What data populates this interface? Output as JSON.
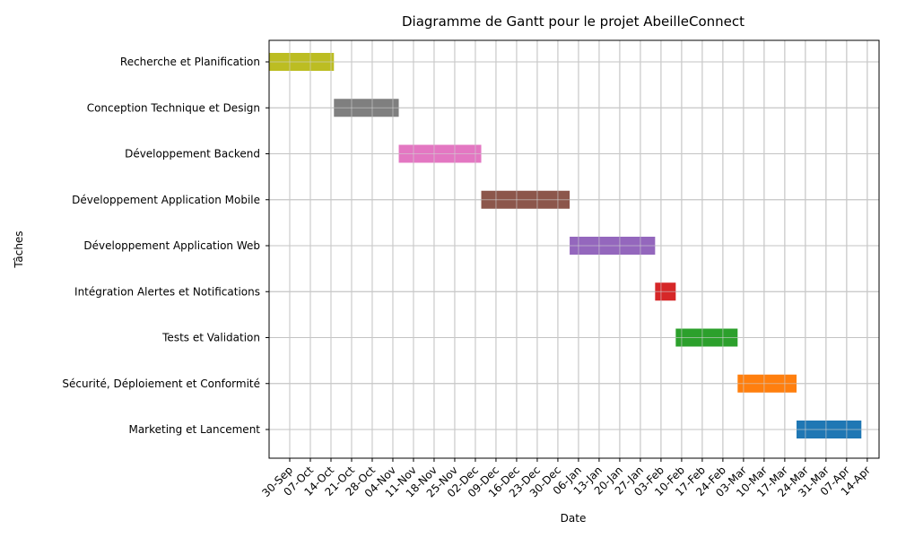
{
  "chart_data": {
    "type": "gantt",
    "title": "Diagramme de Gantt pour le projet AbeilleConnect",
    "xlabel": "Date",
    "ylabel": "Tâches",
    "grid": true,
    "x_range": [
      "2024-09-23",
      "2025-04-18"
    ],
    "x_ticks": [
      "30-Sep",
      "07-Oct",
      "14-Oct",
      "21-Oct",
      "28-Oct",
      "04-Nov",
      "11-Nov",
      "18-Nov",
      "25-Nov",
      "02-Dec",
      "09-Dec",
      "16-Dec",
      "23-Dec",
      "30-Dec",
      "06-Jan",
      "13-Jan",
      "20-Jan",
      "27-Jan",
      "03-Feb",
      "10-Feb",
      "17-Feb",
      "24-Feb",
      "03-Mar",
      "10-Mar",
      "17-Mar",
      "24-Mar",
      "31-Mar",
      "07-Apr",
      "14-Apr"
    ],
    "x_tick_dates": [
      "2024-09-30",
      "2024-10-07",
      "2024-10-14",
      "2024-10-21",
      "2024-10-28",
      "2024-11-04",
      "2024-11-11",
      "2024-11-18",
      "2024-11-25",
      "2024-12-02",
      "2024-12-09",
      "2024-12-16",
      "2024-12-23",
      "2024-12-30",
      "2025-01-06",
      "2025-01-13",
      "2025-01-20",
      "2025-01-27",
      "2025-02-03",
      "2025-02-10",
      "2025-02-17",
      "2025-02-24",
      "2025-03-03",
      "2025-03-10",
      "2025-03-17",
      "2025-03-24",
      "2025-03-31",
      "2025-04-07",
      "2025-04-14"
    ],
    "tasks": [
      {
        "name": "Recherche et Planification",
        "start": "2024-09-23",
        "end": "2024-10-14",
        "color": "#bcbd22"
      },
      {
        "name": "Conception Technique et Design",
        "start": "2024-10-15",
        "end": "2024-11-05",
        "color": "#7f7f7f"
      },
      {
        "name": "Développement Backend",
        "start": "2024-11-06",
        "end": "2024-12-03",
        "color": "#e377c2"
      },
      {
        "name": "Développement Application Mobile",
        "start": "2024-12-04",
        "end": "2025-01-02",
        "color": "#8c564b"
      },
      {
        "name": "Développement Application Web",
        "start": "2025-01-03",
        "end": "2025-01-31",
        "color": "#9467bd"
      },
      {
        "name": "Intégration Alertes et Notifications",
        "start": "2025-02-01",
        "end": "2025-02-07",
        "color": "#d62728"
      },
      {
        "name": "Tests et Validation",
        "start": "2025-02-08",
        "end": "2025-02-28",
        "color": "#2ca02c"
      },
      {
        "name": "Sécurité, Déploiement et Conformité",
        "start": "2025-03-01",
        "end": "2025-03-20",
        "color": "#ff7f0e"
      },
      {
        "name": "Marketing et Lancement",
        "start": "2025-03-21",
        "end": "2025-04-11",
        "color": "#1f77b4"
      }
    ]
  }
}
